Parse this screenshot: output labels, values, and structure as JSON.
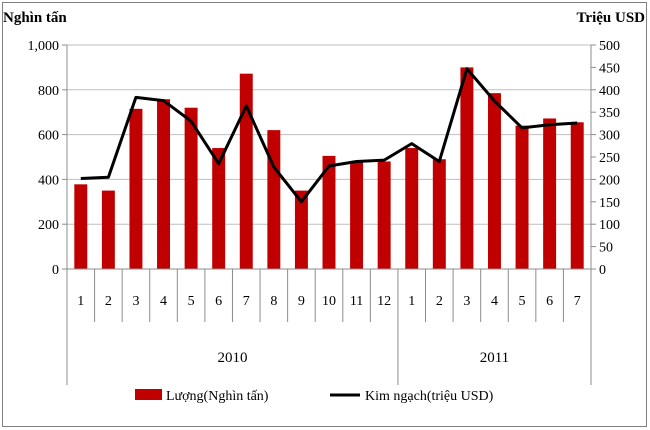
{
  "chart_data": {
    "type": "bar+line",
    "left_axis_unit": "Nghìn tấn",
    "right_axis_unit": "Triệu USD",
    "left_ylim": [
      0,
      1000
    ],
    "left_ticks": [
      "0",
      "200",
      "400",
      "600",
      "800",
      "1,000"
    ],
    "right_ylim": [
      0,
      500
    ],
    "right_ticks": [
      "0",
      "50",
      "100",
      "150",
      "200",
      "250",
      "300",
      "350",
      "400",
      "450",
      "500"
    ],
    "categories": [
      "1",
      "2",
      "3",
      "4",
      "5",
      "6",
      "7",
      "8",
      "9",
      "10",
      "11",
      "12",
      "1",
      "2",
      "3",
      "4",
      "5",
      "6",
      "7"
    ],
    "groups": [
      {
        "label": "2010",
        "count": 12
      },
      {
        "label": "2011",
        "count": 7
      }
    ],
    "series": [
      {
        "name": "Lượng(Nghìn tấn)",
        "type": "bar",
        "axis": "left",
        "color": "#c00000",
        "values": [
          378,
          350,
          715,
          758,
          720,
          540,
          872,
          620,
          350,
          505,
          480,
          480,
          540,
          490,
          900,
          785,
          640,
          672,
          655
        ]
      },
      {
        "name": "Kim ngạch(triệu USD)",
        "type": "line",
        "axis": "right",
        "color": "#000000",
        "values": [
          202,
          205,
          383,
          376,
          330,
          235,
          364,
          228,
          150,
          230,
          240,
          243,
          280,
          240,
          447,
          375,
          315,
          322,
          326
        ]
      }
    ],
    "grid": true,
    "legend_position": "bottom"
  }
}
